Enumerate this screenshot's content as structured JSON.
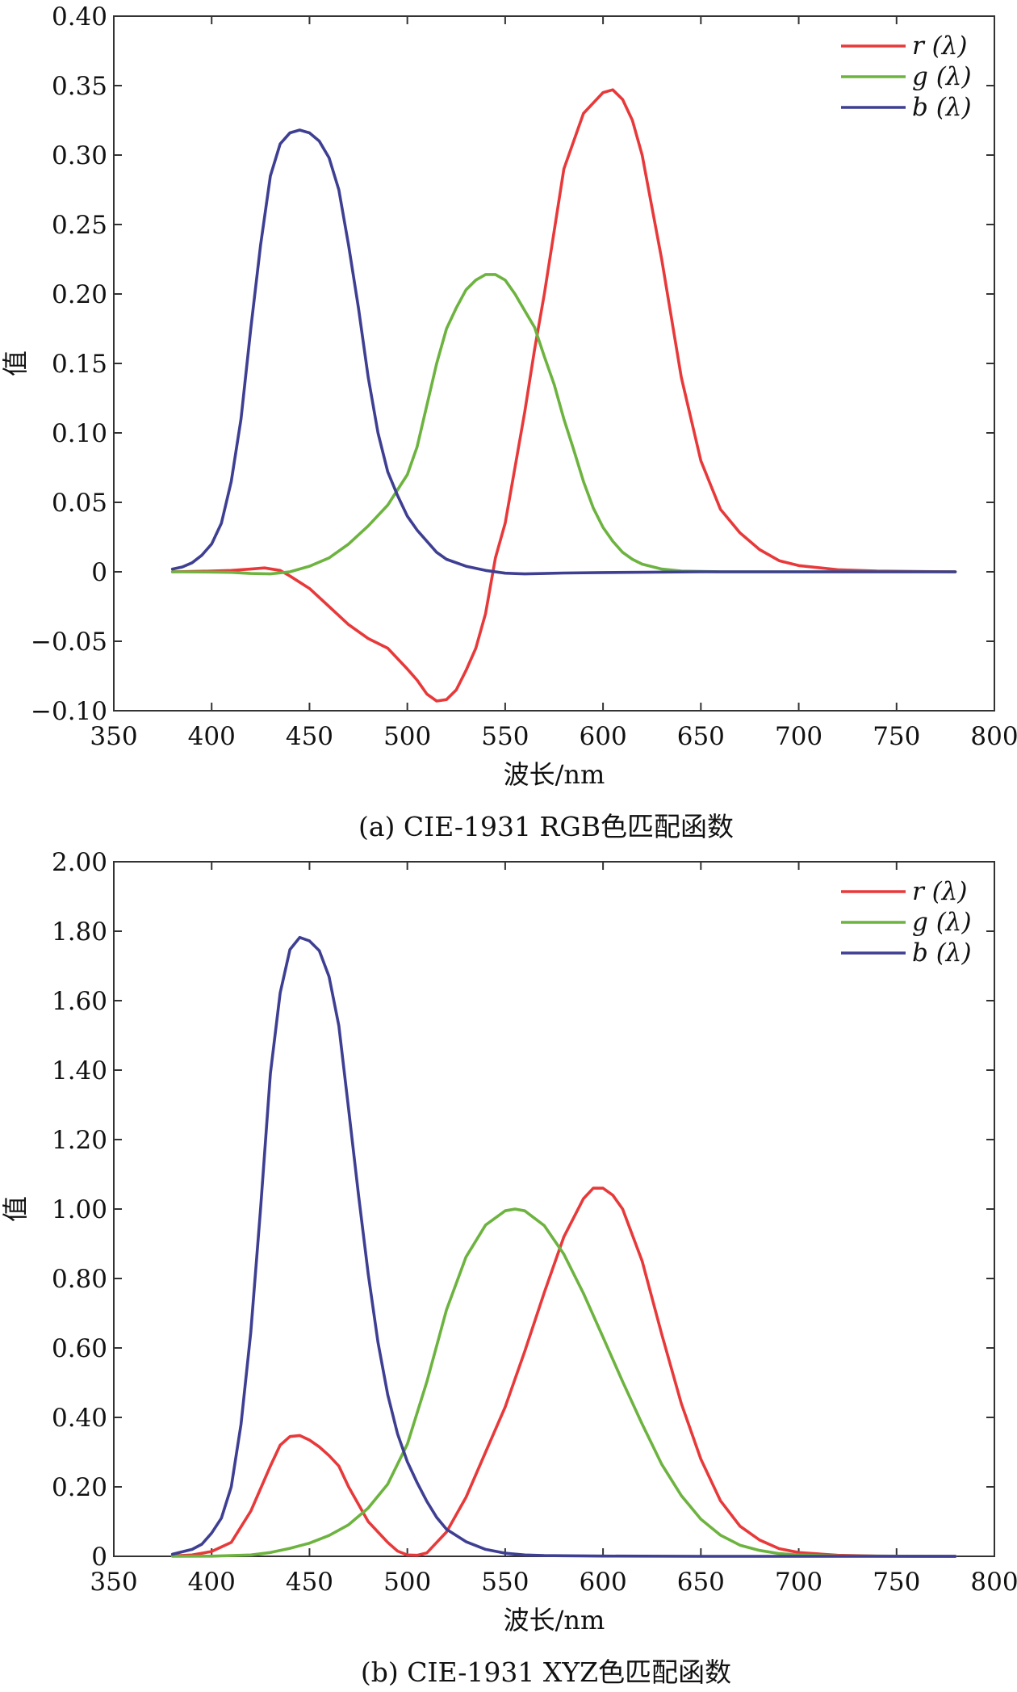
{
  "chart_data": [
    {
      "type": "line",
      "caption": "(a) CIE-1931 RGB色匹配函数",
      "xlabel": "波长/nm",
      "ylabel": "值",
      "xlim": [
        350,
        800
      ],
      "ylim": [
        -0.1,
        0.4
      ],
      "xticks": [
        350,
        400,
        450,
        500,
        550,
        600,
        650,
        700,
        750,
        800
      ],
      "xtick_labels": [
        "350",
        "400",
        "450",
        "500",
        "550",
        "600",
        "650",
        "700",
        "750",
        "800"
      ],
      "yticks": [
        -0.1,
        -0.05,
        0,
        0.05,
        0.1,
        0.15,
        0.2,
        0.25,
        0.3,
        0.35,
        0.4
      ],
      "ytick_labels": [
        "−0.10",
        "−0.05",
        "0",
        "0.05",
        "0.10",
        "0.15",
        "0.20",
        "0.25",
        "0.30",
        "0.35",
        "0.40"
      ],
      "grid": false,
      "legend_position": "top-right",
      "series": [
        {
          "name": "r (λ)",
          "color": "#e8393a",
          "points": [
            [
              380,
              0
            ],
            [
              400,
              0.0005
            ],
            [
              410,
              0.001
            ],
            [
              420,
              0.002
            ],
            [
              427,
              0.0028
            ],
            [
              435,
              0.001
            ],
            [
              440,
              -0.003
            ],
            [
              450,
              -0.012
            ],
            [
              460,
              -0.025
            ],
            [
              470,
              -0.038
            ],
            [
              480,
              -0.048
            ],
            [
              490,
              -0.055
            ],
            [
              500,
              -0.07
            ],
            [
              505,
              -0.078
            ],
            [
              510,
              -0.088
            ],
            [
              515,
              -0.093
            ],
            [
              520,
              -0.092
            ],
            [
              525,
              -0.085
            ],
            [
              530,
              -0.071
            ],
            [
              535,
              -0.055
            ],
            [
              540,
              -0.03
            ],
            [
              545,
              0.01
            ],
            [
              550,
              0.035
            ],
            [
              555,
              0.075
            ],
            [
              560,
              0.115
            ],
            [
              565,
              0.16
            ],
            [
              570,
              0.2
            ],
            [
              575,
              0.245
            ],
            [
              580,
              0.29
            ],
            [
              590,
              0.33
            ],
            [
              600,
              0.345
            ],
            [
              605,
              0.347
            ],
            [
              610,
              0.34
            ],
            [
              615,
              0.325
            ],
            [
              620,
              0.3
            ],
            [
              630,
              0.225
            ],
            [
              640,
              0.14
            ],
            [
              650,
              0.08
            ],
            [
              660,
              0.045
            ],
            [
              670,
              0.028
            ],
            [
              680,
              0.016
            ],
            [
              690,
              0.008
            ],
            [
              700,
              0.0045
            ],
            [
              720,
              0.0015
            ],
            [
              740,
              0.0005
            ],
            [
              780,
              0
            ]
          ]
        },
        {
          "name": "g (λ)",
          "color": "#6db33f",
          "points": [
            [
              380,
              0
            ],
            [
              400,
              -0.0002
            ],
            [
              410,
              -0.0004
            ],
            [
              420,
              -0.0012
            ],
            [
              430,
              -0.0015
            ],
            [
              440,
              0
            ],
            [
              450,
              0.004
            ],
            [
              460,
              0.01
            ],
            [
              470,
              0.02
            ],
            [
              480,
              0.033
            ],
            [
              490,
              0.048
            ],
            [
              500,
              0.07
            ],
            [
              505,
              0.09
            ],
            [
              510,
              0.12
            ],
            [
              515,
              0.15
            ],
            [
              520,
              0.175
            ],
            [
              525,
              0.19
            ],
            [
              530,
              0.203
            ],
            [
              535,
              0.21
            ],
            [
              540,
              0.214
            ],
            [
              545,
              0.214
            ],
            [
              550,
              0.21
            ],
            [
              555,
              0.2
            ],
            [
              560,
              0.188
            ],
            [
              565,
              0.176
            ],
            [
              570,
              0.155
            ],
            [
              575,
              0.135
            ],
            [
              580,
              0.11
            ],
            [
              585,
              0.088
            ],
            [
              590,
              0.065
            ],
            [
              595,
              0.046
            ],
            [
              600,
              0.032
            ],
            [
              605,
              0.022
            ],
            [
              610,
              0.014
            ],
            [
              615,
              0.009
            ],
            [
              620,
              0.0055
            ],
            [
              630,
              0.002
            ],
            [
              640,
              0.0005
            ],
            [
              660,
              0
            ],
            [
              780,
              0
            ]
          ]
        },
        {
          "name": "b (λ)",
          "color": "#3e3f92",
          "points": [
            [
              380,
              0.002
            ],
            [
              385,
              0.0035
            ],
            [
              390,
              0.0065
            ],
            [
              395,
              0.012
            ],
            [
              400,
              0.02
            ],
            [
              405,
              0.035
            ],
            [
              410,
              0.065
            ],
            [
              415,
              0.11
            ],
            [
              420,
              0.175
            ],
            [
              425,
              0.235
            ],
            [
              430,
              0.285
            ],
            [
              435,
              0.308
            ],
            [
              440,
              0.316
            ],
            [
              445,
              0.318
            ],
            [
              450,
              0.316
            ],
            [
              455,
              0.31
            ],
            [
              460,
              0.298
            ],
            [
              465,
              0.275
            ],
            [
              470,
              0.235
            ],
            [
              475,
              0.19
            ],
            [
              480,
              0.14
            ],
            [
              485,
              0.1
            ],
            [
              490,
              0.072
            ],
            [
              495,
              0.055
            ],
            [
              500,
              0.04
            ],
            [
              505,
              0.03
            ],
            [
              510,
              0.022
            ],
            [
              515,
              0.014
            ],
            [
              520,
              0.009
            ],
            [
              530,
              0.004
            ],
            [
              540,
              0.001
            ],
            [
              550,
              -0.001
            ],
            [
              560,
              -0.0015
            ],
            [
              570,
              -0.0012
            ],
            [
              580,
              -0.0009
            ],
            [
              600,
              -0.0005
            ],
            [
              650,
              0
            ],
            [
              780,
              0
            ]
          ]
        }
      ]
    },
    {
      "type": "line",
      "caption": "(b) CIE-1931 XYZ色匹配函数",
      "xlabel": "波长/nm",
      "ylabel": "值",
      "xlim": [
        350,
        800
      ],
      "ylim": [
        0,
        2.0
      ],
      "xticks": [
        350,
        400,
        450,
        500,
        550,
        600,
        650,
        700,
        750,
        800
      ],
      "xtick_labels": [
        "350",
        "400",
        "450",
        "500",
        "550",
        "600",
        "650",
        "700",
        "750",
        "800"
      ],
      "yticks": [
        0,
        0.2,
        0.4,
        0.6,
        0.8,
        1.0,
        1.2,
        1.4,
        1.6,
        1.8,
        2.0
      ],
      "ytick_labels": [
        "0",
        "0.20",
        "0.40",
        "0.60",
        "0.80",
        "1.00",
        "1.20",
        "1.40",
        "1.60",
        "1.80",
        "2.00"
      ],
      "grid": false,
      "legend_position": "top-right",
      "series": [
        {
          "name": "r (λ)",
          "color": "#e8393a",
          "points": [
            [
              380,
              0.001
            ],
            [
              390,
              0.004
            ],
            [
              400,
              0.014
            ],
            [
              410,
              0.04
            ],
            [
              420,
              0.13
            ],
            [
              430,
              0.26
            ],
            [
              435,
              0.32
            ],
            [
              440,
              0.345
            ],
            [
              445,
              0.348
            ],
            [
              450,
              0.335
            ],
            [
              455,
              0.315
            ],
            [
              460,
              0.29
            ],
            [
              465,
              0.26
            ],
            [
              470,
              0.2
            ],
            [
              480,
              0.1
            ],
            [
              490,
              0.04
            ],
            [
              495,
              0.015
            ],
            [
              500,
              0.004
            ],
            [
              505,
              0.003
            ],
            [
              510,
              0.01
            ],
            [
              515,
              0.04
            ],
            [
              520,
              0.07
            ],
            [
              530,
              0.17
            ],
            [
              540,
              0.3
            ],
            [
              550,
              0.43
            ],
            [
              560,
              0.59
            ],
            [
              570,
              0.76
            ],
            [
              580,
              0.92
            ],
            [
              590,
              1.03
            ],
            [
              595,
              1.06
            ],
            [
              600,
              1.06
            ],
            [
              605,
              1.04
            ],
            [
              610,
              1.0
            ],
            [
              620,
              0.85
            ],
            [
              630,
              0.64
            ],
            [
              640,
              0.44
            ],
            [
              650,
              0.28
            ],
            [
              660,
              0.16
            ],
            [
              670,
              0.087
            ],
            [
              680,
              0.047
            ],
            [
              690,
              0.022
            ],
            [
              700,
              0.011
            ],
            [
              720,
              0.003
            ],
            [
              740,
              0.0008
            ],
            [
              780,
              0
            ]
          ]
        },
        {
          "name": "g (λ)",
          "color": "#6db33f",
          "points": [
            [
              380,
              0
            ],
            [
              400,
              0.0004
            ],
            [
              420,
              0.004
            ],
            [
              430,
              0.011
            ],
            [
              440,
              0.023
            ],
            [
              450,
              0.038
            ],
            [
              460,
              0.06
            ],
            [
              470,
              0.091
            ],
            [
              480,
              0.139
            ],
            [
              490,
              0.208
            ],
            [
              500,
              0.323
            ],
            [
              510,
              0.503
            ],
            [
              520,
              0.71
            ],
            [
              530,
              0.862
            ],
            [
              540,
              0.954
            ],
            [
              550,
              0.995
            ],
            [
              555,
              1.0
            ],
            [
              560,
              0.995
            ],
            [
              570,
              0.952
            ],
            [
              580,
              0.87
            ],
            [
              590,
              0.757
            ],
            [
              600,
              0.631
            ],
            [
              610,
              0.503
            ],
            [
              620,
              0.381
            ],
            [
              630,
              0.265
            ],
            [
              640,
              0.175
            ],
            [
              650,
              0.107
            ],
            [
              660,
              0.061
            ],
            [
              670,
              0.032
            ],
            [
              680,
              0.017
            ],
            [
              690,
              0.008
            ],
            [
              700,
              0.004
            ],
            [
              720,
              0.001
            ],
            [
              780,
              0
            ]
          ]
        },
        {
          "name": "b (λ)",
          "color": "#3e3f92",
          "points": [
            [
              380,
              0.006
            ],
            [
              390,
              0.02
            ],
            [
              395,
              0.035
            ],
            [
              400,
              0.067
            ],
            [
              405,
              0.11
            ],
            [
              410,
              0.2
            ],
            [
              415,
              0.38
            ],
            [
              420,
              0.645
            ],
            [
              425,
              1.0
            ],
            [
              430,
              1.39
            ],
            [
              435,
              1.622
            ],
            [
              440,
              1.747
            ],
            [
              445,
              1.782
            ],
            [
              450,
              1.772
            ],
            [
              455,
              1.744
            ],
            [
              460,
              1.669
            ],
            [
              465,
              1.528
            ],
            [
              470,
              1.288
            ],
            [
              475,
              1.042
            ],
            [
              480,
              0.813
            ],
            [
              485,
              0.616
            ],
            [
              490,
              0.465
            ],
            [
              495,
              0.353
            ],
            [
              500,
              0.272
            ],
            [
              505,
              0.212
            ],
            [
              510,
              0.158
            ],
            [
              515,
              0.112
            ],
            [
              520,
              0.078
            ],
            [
              530,
              0.042
            ],
            [
              540,
              0.02
            ],
            [
              550,
              0.009
            ],
            [
              560,
              0.004
            ],
            [
              570,
              0.002
            ],
            [
              580,
              0.0017
            ],
            [
              600,
              0.0008
            ],
            [
              650,
              0
            ],
            [
              780,
              0
            ]
          ]
        }
      ]
    }
  ]
}
